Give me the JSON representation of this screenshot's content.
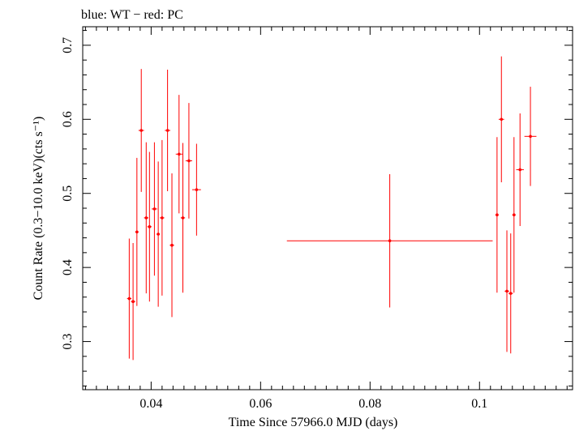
{
  "chart_data": {
    "type": "scatter",
    "title": "blue: WT − red: PC",
    "xlabel": "Time Since 57966.0 MJD (days)",
    "ylabel": "Count Rate (0.3−10.0 keV)(cts s⁻¹)",
    "xlim": [
      0.0275,
      0.117
    ],
    "ylim": [
      0.235,
      0.725
    ],
    "x_ticks": [
      0.04,
      0.06,
      0.08,
      0.1
    ],
    "x_tick_labels": [
      "0.04",
      "0.06",
      "0.08",
      "0.1"
    ],
    "y_ticks": [
      0.3,
      0.4,
      0.5,
      0.6,
      0.7
    ],
    "y_tick_labels": [
      "0.3",
      "0.4",
      "0.5",
      "0.6",
      "0.7"
    ],
    "grid": false,
    "series": [
      {
        "color": "#ff0000",
        "points": [
          {
            "x": 0.036,
            "y": 0.358,
            "xerr": 0.0004,
            "yerr": 0.081
          },
          {
            "x": 0.0367,
            "y": 0.354,
            "xerr": 0.0004,
            "yerr": 0.079
          },
          {
            "x": 0.0374,
            "y": 0.448,
            "xerr": 0.0003,
            "yerr": 0.1
          },
          {
            "x": 0.0382,
            "y": 0.585,
            "xerr": 0.0005,
            "yerr": 0.083
          },
          {
            "x": 0.0391,
            "y": 0.467,
            "xerr": 0.0004,
            "yerr": 0.102
          },
          {
            "x": 0.0397,
            "y": 0.455,
            "xerr": 0.0004,
            "yerr": 0.101
          },
          {
            "x": 0.0406,
            "y": 0.479,
            "xerr": 0.0005,
            "yerr": 0.09
          },
          {
            "x": 0.0413,
            "y": 0.445,
            "xerr": 0.0003,
            "yerr": 0.098
          },
          {
            "x": 0.042,
            "y": 0.467,
            "xerr": 0.0004,
            "yerr": 0.105
          },
          {
            "x": 0.043,
            "y": 0.585,
            "xerr": 0.0005,
            "yerr": 0.082
          },
          {
            "x": 0.0438,
            "y": 0.43,
            "xerr": 0.0004,
            "yerr": 0.097
          },
          {
            "x": 0.0451,
            "y": 0.553,
            "xerr": 0.0006,
            "yerr": 0.08
          },
          {
            "x": 0.0458,
            "y": 0.467,
            "xerr": 0.0004,
            "yerr": 0.101
          },
          {
            "x": 0.0469,
            "y": 0.544,
            "xerr": 0.0006,
            "yerr": 0.078
          },
          {
            "x": 0.0483,
            "y": 0.505,
            "xerr": 0.0008,
            "yerr": 0.062
          },
          {
            "x": 0.0836,
            "y": 0.436,
            "xerr": 0.0188,
            "yerr": 0.09
          },
          {
            "x": 0.1032,
            "y": 0.471,
            "xerr": 0.0003,
            "yerr": 0.105
          },
          {
            "x": 0.104,
            "y": 0.6,
            "xerr": 0.0005,
            "yerr": 0.085
          },
          {
            "x": 0.105,
            "y": 0.368,
            "xerr": 0.0004,
            "yerr": 0.082
          },
          {
            "x": 0.1057,
            "y": 0.365,
            "xerr": 0.0004,
            "yerr": 0.081
          },
          {
            "x": 0.1063,
            "y": 0.471,
            "xerr": 0.0003,
            "yerr": 0.105
          },
          {
            "x": 0.1074,
            "y": 0.532,
            "xerr": 0.0007,
            "yerr": 0.076
          },
          {
            "x": 0.1093,
            "y": 0.577,
            "xerr": 0.0011,
            "yerr": 0.067
          }
        ]
      }
    ]
  }
}
